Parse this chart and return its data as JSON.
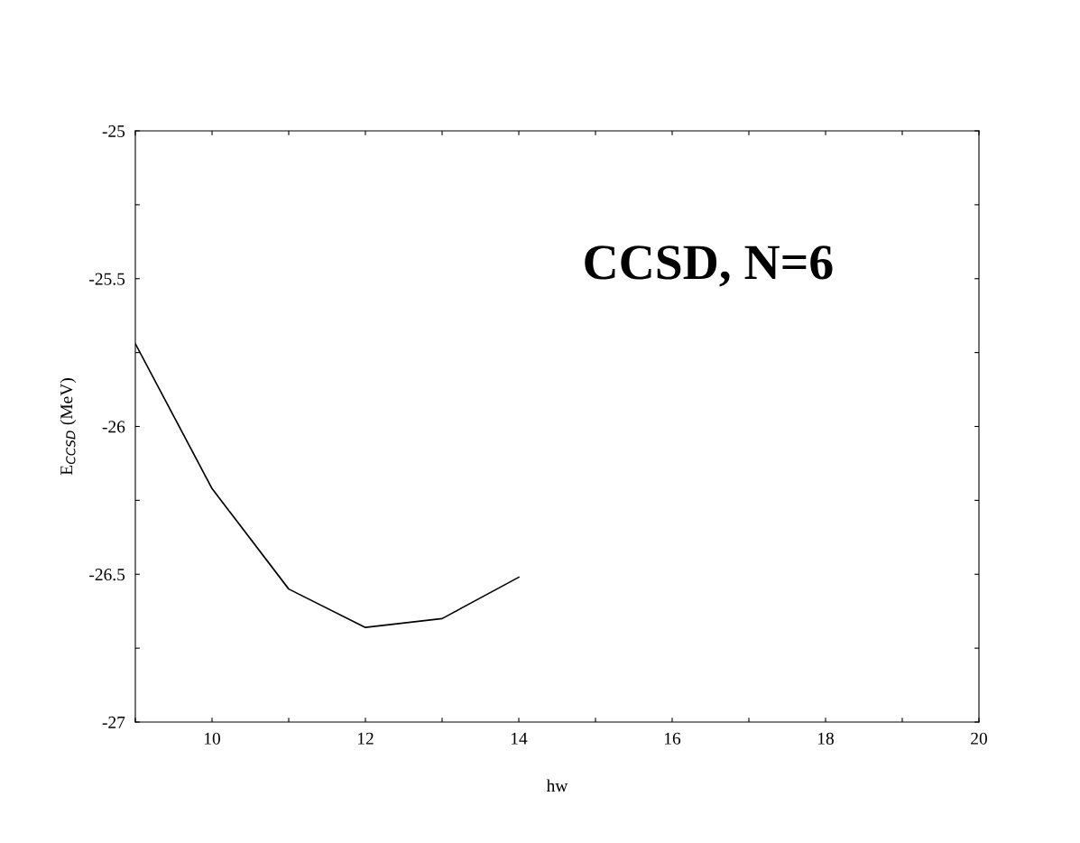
{
  "chart_data": {
    "type": "line",
    "xlabel": "hw",
    "ylabel": "E$_{CCSD}$ (MeV)",
    "annotations": [
      "CCSD, N=6"
    ],
    "x": [
      9,
      10,
      11,
      12,
      13,
      14
    ],
    "series": [
      {
        "color": "#000000",
        "values": [
          -25.72,
          -26.21,
          -26.55,
          -26.68,
          -26.65,
          -26.51
        ]
      }
    ],
    "xlim": [
      9,
      20
    ],
    "xticks": [
      {
        "value": 9,
        "label": null
      },
      10,
      {
        "value": 11,
        "label": null
      },
      12,
      {
        "value": 13,
        "label": null
      },
      14,
      {
        "value": 15,
        "label": null
      },
      16,
      {
        "value": 17,
        "label": null
      },
      18,
      {
        "value": 19,
        "label": null
      },
      20
    ],
    "ylim": [
      -27,
      -25
    ],
    "yticks": [
      -27,
      {
        "value": -26.75,
        "label": null
      },
      -26.5,
      {
        "value": -26.25,
        "label": null
      },
      -26,
      {
        "value": -25.75,
        "label": null
      },
      -25.5,
      {
        "value": -25.25,
        "label": null
      },
      -25
    ],
    "grid": false,
    "legend": false,
    "marker": "none",
    "line_style": "solid"
  }
}
